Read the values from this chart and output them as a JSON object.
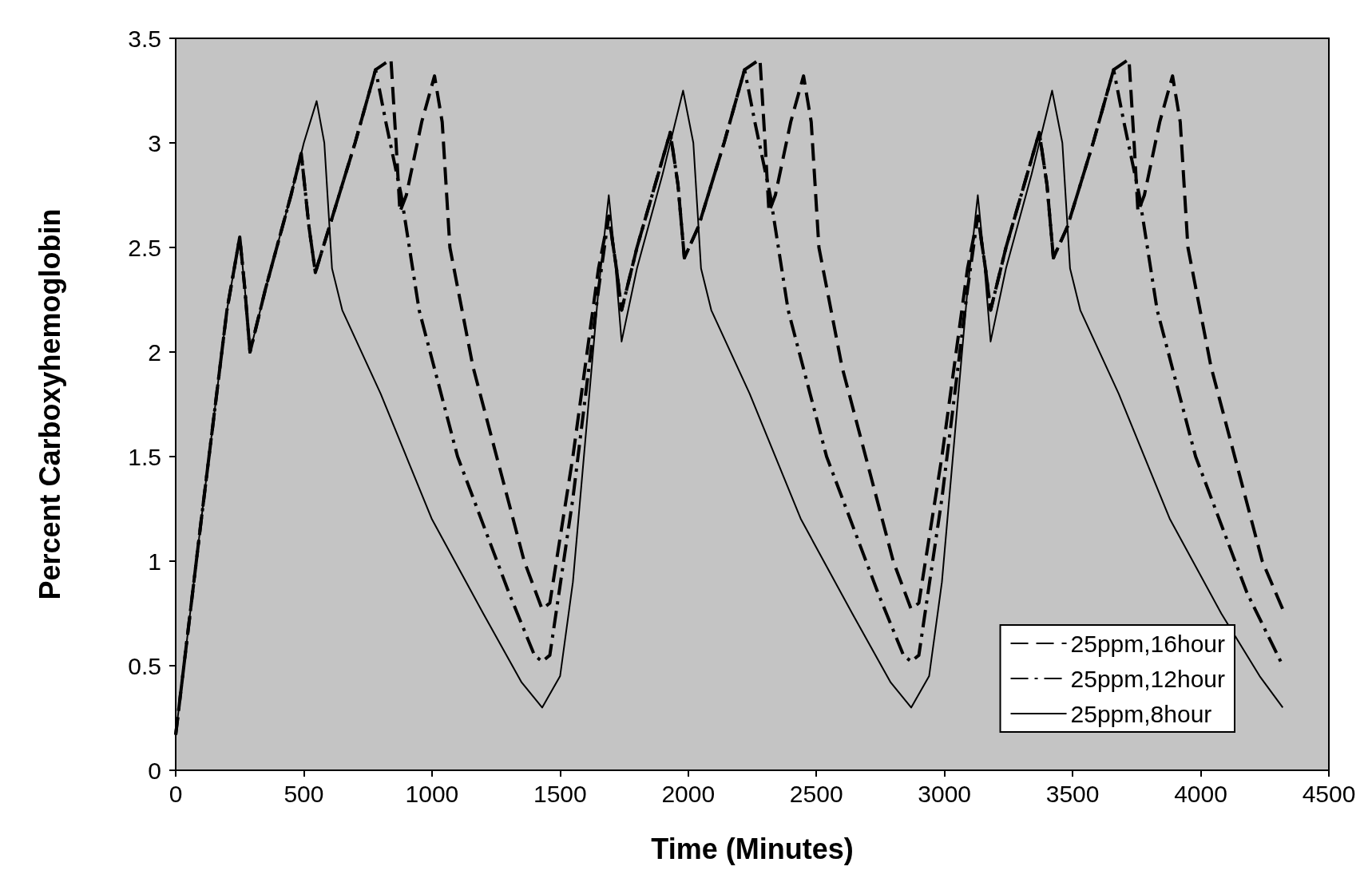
{
  "chart_data": {
    "type": "line",
    "xlabel": "Time (Minutes)",
    "ylabel": "Percent Carboxyhemoglobin",
    "xlim": [
      0,
      4500
    ],
    "xticks": [
      0,
      500,
      1000,
      1500,
      2000,
      2500,
      3000,
      3500,
      4000,
      4500
    ],
    "ylim": [
      0,
      3.5
    ],
    "yticks": [
      0,
      0.5,
      1,
      1.5,
      2,
      2.5,
      3,
      3.5
    ],
    "grid": false,
    "legend": "bottom right",
    "marker": "none",
    "series": [
      {
        "name": "25ppm,16hour",
        "color": "#000000",
        "line_style": "dashed",
        "x": [
          0,
          100,
          200,
          250,
          270,
          290,
          350,
          450,
          490,
          520,
          545,
          600,
          700,
          780,
          840,
          860,
          875,
          900,
          960,
          1010,
          1040,
          1070,
          1160,
          1360,
          1430,
          1460,
          1550,
          1650,
          1690,
          1720,
          1740,
          1800,
          1930,
          1960,
          1985,
          2040,
          2140,
          2220,
          2280,
          2300,
          2315,
          2340,
          2400,
          2450,
          2480,
          2510,
          2600,
          2800,
          2870,
          2900,
          2990,
          3090,
          3130,
          3160,
          3180,
          3240,
          3370,
          3400,
          3425,
          3480,
          3580,
          3660,
          3720,
          3740,
          3755,
          3780,
          3840,
          3890,
          3920,
          3950,
          4040,
          4240,
          4320
        ],
        "values": [
          0.17,
          1.2,
          2.2,
          2.55,
          2.3,
          2.0,
          2.3,
          2.75,
          2.95,
          2.6,
          2.38,
          2.6,
          3.0,
          3.35,
          3.4,
          3.0,
          2.67,
          2.75,
          3.1,
          3.32,
          3.1,
          2.5,
          1.93,
          1.0,
          0.77,
          0.8,
          1.5,
          2.4,
          2.65,
          2.4,
          2.2,
          2.5,
          3.05,
          2.8,
          2.45,
          2.6,
          3.0,
          3.35,
          3.4,
          3.0,
          2.67,
          2.75,
          3.1,
          3.32,
          3.1,
          2.5,
          1.93,
          1.0,
          0.77,
          0.8,
          1.5,
          2.4,
          2.65,
          2.4,
          2.2,
          2.5,
          3.05,
          2.8,
          2.45,
          2.6,
          3.0,
          3.35,
          3.4,
          3.0,
          2.67,
          2.75,
          3.1,
          3.32,
          3.1,
          2.5,
          1.93,
          1.0,
          0.77
        ]
      },
      {
        "name": "25ppm,12hour",
        "color": "#000000",
        "line_style": "dashdot",
        "x": [
          0,
          100,
          200,
          250,
          270,
          290,
          350,
          450,
          490,
          520,
          545,
          600,
          700,
          780,
          820,
          880,
          950,
          1100,
          1300,
          1400,
          1430,
          1460,
          1550,
          1650,
          1690,
          1720,
          1740,
          1800,
          1930,
          1960,
          1985,
          2040,
          2140,
          2220,
          2260,
          2320,
          2390,
          2540,
          2740,
          2840,
          2870,
          2900,
          2990,
          3090,
          3130,
          3160,
          3180,
          3240,
          3370,
          3400,
          3425,
          3480,
          3580,
          3660,
          3700,
          3760,
          3830,
          3980,
          4180,
          4320
        ],
        "values": [
          0.17,
          1.2,
          2.2,
          2.55,
          2.3,
          2.0,
          2.3,
          2.75,
          2.95,
          2.6,
          2.38,
          2.6,
          3.0,
          3.35,
          3.1,
          2.75,
          2.2,
          1.5,
          0.85,
          0.55,
          0.52,
          0.55,
          1.3,
          2.3,
          2.65,
          2.4,
          2.2,
          2.5,
          3.05,
          2.8,
          2.45,
          2.6,
          3.0,
          3.35,
          3.1,
          2.75,
          2.2,
          1.5,
          0.85,
          0.55,
          0.52,
          0.55,
          1.3,
          2.3,
          2.65,
          2.4,
          2.2,
          2.5,
          3.05,
          2.8,
          2.45,
          2.6,
          3.0,
          3.35,
          3.1,
          2.75,
          2.2,
          1.5,
          0.85,
          0.5
        ]
      },
      {
        "name": "25ppm,8hour",
        "color": "#000000",
        "line_style": "solid",
        "x": [
          0,
          100,
          200,
          250,
          270,
          290,
          350,
          450,
          500,
          550,
          580,
          600,
          610,
          650,
          800,
          1000,
          1200,
          1350,
          1430,
          1500,
          1550,
          1600,
          1650,
          1690,
          1710,
          1740,
          1800,
          1900,
          1980,
          2020,
          2040,
          2050,
          2090,
          2240,
          2440,
          2640,
          2790,
          2870,
          2940,
          2990,
          3040,
          3090,
          3130,
          3150,
          3180,
          3240,
          3340,
          3420,
          3460,
          3480,
          3490,
          3530,
          3680,
          3880,
          4080,
          4230,
          4320
        ],
        "values": [
          0.17,
          1.2,
          2.2,
          2.55,
          2.3,
          2.0,
          2.3,
          2.75,
          3.0,
          3.2,
          3.0,
          2.6,
          2.4,
          2.2,
          1.8,
          1.2,
          0.75,
          0.42,
          0.3,
          0.45,
          0.9,
          1.6,
          2.3,
          2.75,
          2.5,
          2.05,
          2.4,
          2.85,
          3.25,
          3.0,
          2.6,
          2.4,
          2.2,
          1.8,
          1.2,
          0.75,
          0.42,
          0.3,
          0.45,
          0.9,
          1.6,
          2.3,
          2.75,
          2.5,
          2.05,
          2.4,
          2.85,
          3.25,
          3.0,
          2.6,
          2.4,
          2.2,
          1.8,
          1.2,
          0.75,
          0.45,
          0.3
        ]
      }
    ]
  }
}
